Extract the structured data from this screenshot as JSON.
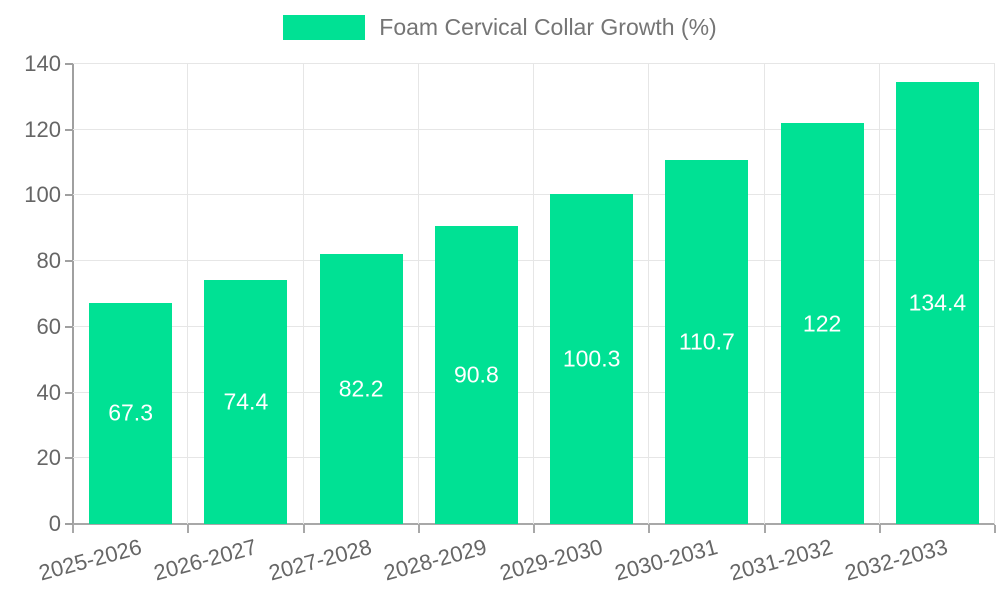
{
  "legend": {
    "label": "Foam Cervical Collar Growth (%)"
  },
  "chart_data": {
    "type": "bar",
    "title": "Foam Cervical Collar Growth (%)",
    "categories": [
      "2025-2026",
      "2026-2027",
      "2027-2028",
      "2028-2029",
      "2029-2030",
      "2030-2031",
      "2031-2032",
      "2032-2033"
    ],
    "values": [
      67.3,
      74.4,
      82.2,
      90.8,
      100.3,
      110.7,
      122,
      134.4
    ],
    "series": [
      {
        "name": "Foam Cervical Collar Growth (%)",
        "values": [
          67.3,
          74.4,
          82.2,
          90.8,
          100.3,
          110.7,
          122,
          134.4
        ]
      }
    ],
    "xlabel": "",
    "ylabel": "",
    "ylim": [
      0,
      140
    ],
    "ytick_step": 20,
    "ytick_labels": [
      "0",
      "20",
      "40",
      "60",
      "80",
      "100",
      "120",
      "140"
    ],
    "grid": true,
    "legend_position": "top-center",
    "bar_color": "#00E194",
    "value_label_color": "#ffffff",
    "axis_text_color": "#666666",
    "legend_text_color": "#757575",
    "gridline_color": "#e6e6e6",
    "axis_line_color": "#a8a8a8",
    "value_labels_shown_inside_bars": true,
    "x_label_rotation_deg": -15
  }
}
